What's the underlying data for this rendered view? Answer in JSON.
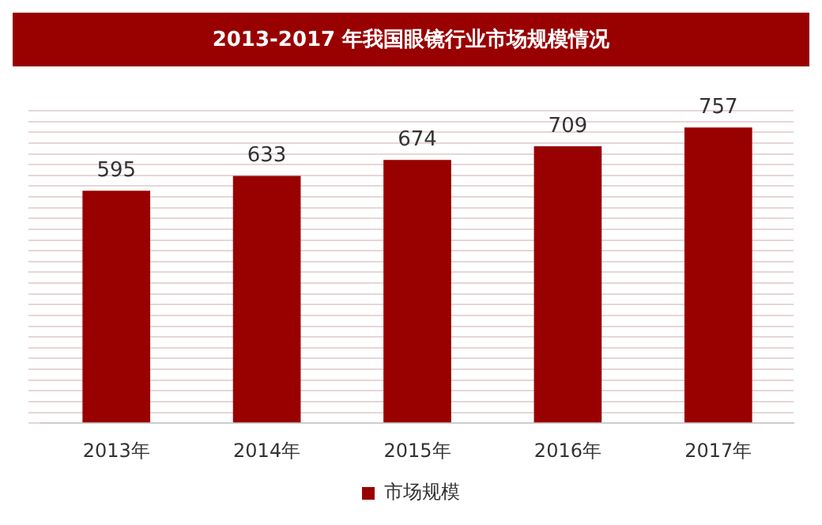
{
  "chart_data": {
    "type": "bar",
    "title": "2013-2017 年我国眼镜行业市场规模情况",
    "categories": [
      "2013年",
      "2014年",
      "2015年",
      "2016年",
      "2017年"
    ],
    "series": [
      {
        "name": "市场规模",
        "color": "#990000",
        "values": [
          595,
          633,
          674,
          709,
          757
        ]
      }
    ],
    "data_labels": true,
    "grid": "y",
    "legend": "bottom",
    "tick_labels": "x"
  }
}
